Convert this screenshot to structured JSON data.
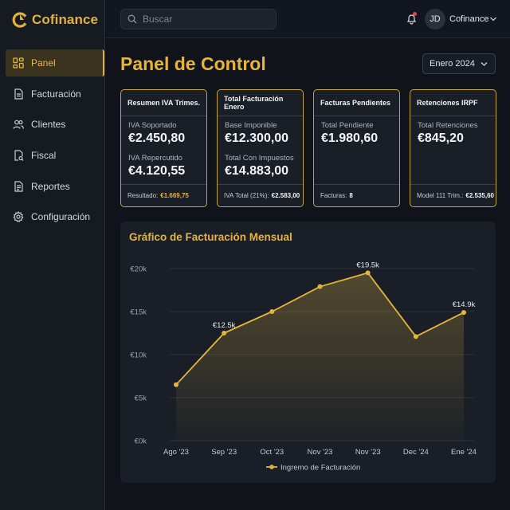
{
  "brand": {
    "name": "Cofinance"
  },
  "sidebar": {
    "items": [
      {
        "label": "Panel",
        "icon": "grid-icon",
        "active": true
      },
      {
        "label": "Facturación",
        "icon": "document-icon",
        "active": false
      },
      {
        "label": "Clientes",
        "icon": "users-icon",
        "active": false
      },
      {
        "label": "Fiscal",
        "icon": "tax-document-icon",
        "active": false
      },
      {
        "label": "Reportes",
        "icon": "report-icon",
        "active": false
      },
      {
        "label": "Configuración",
        "icon": "gear-icon",
        "active": false
      }
    ]
  },
  "topbar": {
    "search_placeholder": "Buscar",
    "user_initials": "JD",
    "user_name": "Cofinance"
  },
  "main": {
    "title": "Panel de Control",
    "period": "Enero 2024"
  },
  "cards": [
    {
      "title": "Resumen IVA Trimes.",
      "rows": [
        {
          "label": "IVA Soportado",
          "value": "€2.450,80"
        },
        {
          "label": "IVA Repercutido",
          "value": "€4.120,55"
        }
      ],
      "footer_label": "Resultado:",
      "footer_value": "€1.669,75"
    },
    {
      "title": "Total Facturación Enero",
      "rows": [
        {
          "label": "Base Imponible",
          "value": "€12.300,00"
        },
        {
          "label": "Total Con Impuestos",
          "value": "€14.883,00"
        }
      ],
      "footer_label": "IVA Total (21%):",
      "footer_value": "€2.583,00"
    },
    {
      "title": "Facturas Pendientes",
      "rows": [
        {
          "label": "Total Pendiente",
          "value": "€1.980,60"
        }
      ],
      "footer_label": "Facturas:",
      "footer_value": "8"
    },
    {
      "title": "Retenciones IRPF",
      "rows": [
        {
          "label": "Total Retenciones",
          "value": "€845,20"
        }
      ],
      "footer_label": "Model 111 Trim.:",
      "footer_value": "€2.535,60"
    }
  ],
  "colors": {
    "accent": "#e6b43b",
    "background": "#10141a",
    "panel": "#1a1f27",
    "notification": "#e0483e"
  },
  "chart_data": {
    "type": "area",
    "title": "Gráfico de Facturación Mensual",
    "categories": [
      "Ago '23",
      "Sep '23",
      "Oct '23",
      "Nov '23",
      "Nov '23",
      "Dec '24",
      "Ene '24"
    ],
    "y_ticks": [
      "€0k",
      "€5k",
      "€10k",
      "€15k",
      "€20k"
    ],
    "ylim": [
      0,
      20000
    ],
    "grid": true,
    "legend_position": "bottom-center",
    "series": [
      {
        "name": "Ingremo de Facturación",
        "color": "#e6b43b",
        "points": [
          {
            "x": 0,
            "y": 6500
          },
          {
            "x": 1,
            "y": 12500
          },
          {
            "x": 2,
            "y": 15000
          },
          {
            "x": 3,
            "y": 17900
          },
          {
            "x": 4,
            "y": 19500
          },
          {
            "x": 5,
            "y": 12100
          },
          {
            "x": 6,
            "y": 14900
          }
        ]
      }
    ],
    "annotations": [
      {
        "point_index": 1,
        "label": "€12.5k"
      },
      {
        "point_index": 4,
        "label": "€19.5k"
      },
      {
        "point_index": 6,
        "label": "€14.9k"
      }
    ]
  }
}
